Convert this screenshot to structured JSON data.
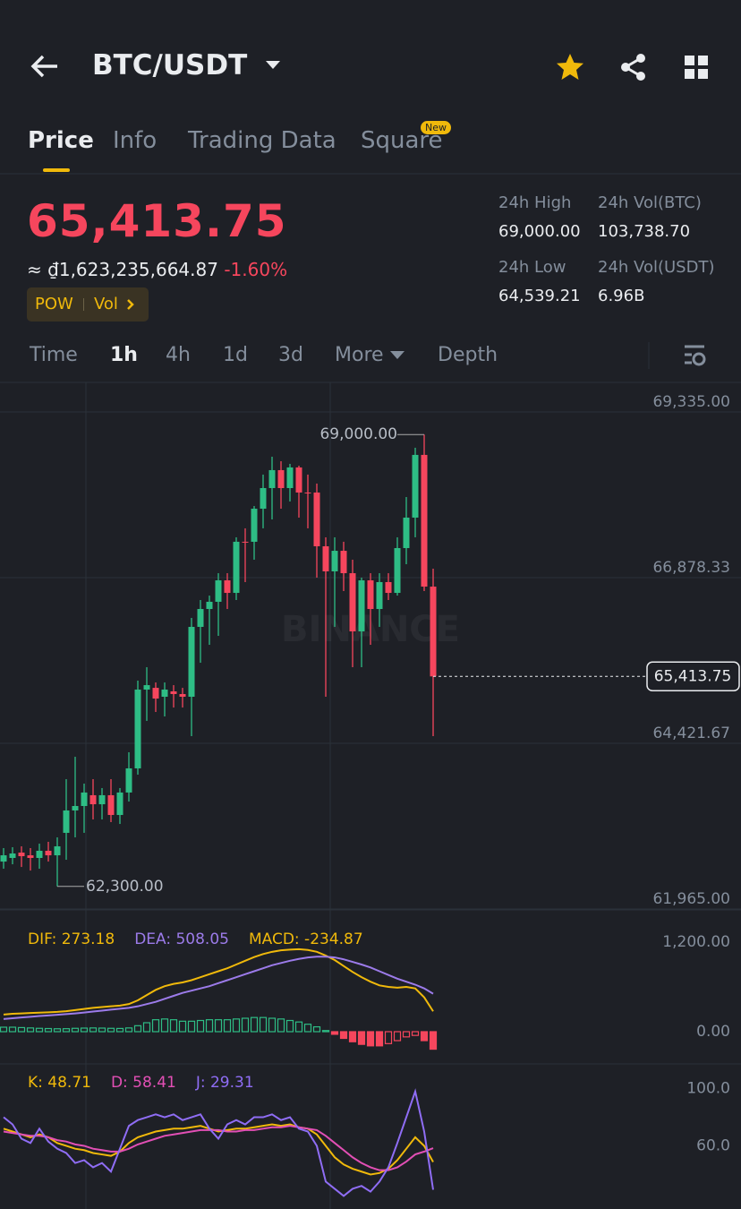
{
  "header": {
    "title": "BTC/USDT"
  },
  "tabs": [
    "Price",
    "Info",
    "Trading Data",
    "Square"
  ],
  "tab_badge": "New",
  "ticker": {
    "price": "65,413.75",
    "fiat": "≈ ₫1,623,235,664.87",
    "change": "-1.60%",
    "tags": [
      "POW",
      "Vol"
    ]
  },
  "stats": [
    {
      "label": "24h High",
      "value": "69,000.00"
    },
    {
      "label": "24h Vol(BTC)",
      "value": "103,738.70"
    },
    {
      "label": "24h Low",
      "value": "64,539.21"
    },
    {
      "label": "24h Vol(USDT)",
      "value": "6.96B"
    }
  ],
  "intervals": [
    "Time",
    "1h",
    "4h",
    "1d",
    "3d",
    "More",
    "Depth"
  ],
  "chart_data": [
    {
      "type": "candlestick",
      "watermark": "BINANCE",
      "up_color": "#2ebd85",
      "down_color": "#f6465d",
      "open": [
        62668,
        62722,
        62801,
        62761,
        62722,
        62828,
        62761,
        63094,
        63426,
        63492,
        63652,
        63518,
        63652,
        63359,
        63692,
        64050,
        65218,
        65244,
        65112,
        65192,
        65152,
        65112,
        66148,
        66413,
        66520,
        66838,
        66652,
        67410,
        67410,
        67900,
        68206,
        68472,
        68206,
        68512,
        68140,
        68140,
        67343,
        66971,
        67276,
        66944,
        66081,
        66838,
        66413,
        66812,
        66652,
        67316,
        67768,
        68698,
        66745
      ],
      "high": [
        62868,
        62881,
        62894,
        62868,
        62934,
        62961,
        63027,
        63890,
        64222,
        63824,
        63890,
        63758,
        63890,
        63758,
        64289,
        65351,
        65550,
        65324,
        65324,
        65284,
        65244,
        66280,
        66546,
        66612,
        66944,
        66944,
        67476,
        67609,
        67940,
        68406,
        68671,
        68604,
        68565,
        68538,
        68406,
        68273,
        67476,
        67476,
        67410,
        67144,
        66878,
        66944,
        66944,
        66944,
        67476,
        68073,
        68804,
        69000,
        67011
      ],
      "low": [
        62562,
        62628,
        62588,
        62535,
        62562,
        62668,
        62300,
        62695,
        63027,
        63094,
        63293,
        63293,
        63253,
        63226,
        63558,
        63957,
        64754,
        64886,
        64820,
        64952,
        64952,
        64528,
        65616,
        65882,
        66015,
        66413,
        66546,
        66812,
        67144,
        67609,
        67741,
        67900,
        68007,
        67768,
        67609,
        66878,
        65112,
        66148,
        66679,
        65550,
        65550,
        65882,
        66148,
        66546,
        66612,
        67077,
        67476,
        66679,
        64528
      ],
      "close": [
        62761,
        62788,
        62748,
        62722,
        62828,
        62761,
        62894,
        63426,
        63492,
        63692,
        63518,
        63652,
        63359,
        63692,
        64050,
        65218,
        65284,
        65085,
        65218,
        65152,
        65112,
        66148,
        66413,
        66520,
        66838,
        66652,
        67410,
        67400,
        67900,
        68206,
        68472,
        68206,
        68512,
        68140,
        68130,
        67343,
        66971,
        67276,
        66944,
        66081,
        66838,
        66413,
        66812,
        66652,
        67316,
        67768,
        68698,
        66745,
        65413.75
      ],
      "ylim": [
        61965,
        69733
      ],
      "yticks": [
        {
          "value": 69335,
          "label": "69,335.00"
        },
        {
          "value": 66878.33,
          "label": "66,878.33"
        },
        {
          "value": 64421.67,
          "label": "64,421.67"
        },
        {
          "value": 61965,
          "label": "61,965.00"
        }
      ],
      "annotations": [
        {
          "value": 69000,
          "label": "69,000.00"
        },
        {
          "value": 62300,
          "label": "62,300.00"
        }
      ],
      "last_price": {
        "value": 65413.75,
        "label": "65,413.75"
      }
    },
    {
      "type": "macd",
      "ylim": [
        -456,
        1344
      ],
      "yticks": [
        {
          "value": 1200,
          "label": "1,200.00"
        },
        {
          "value": 0,
          "label": "0.00"
        }
      ],
      "series": [
        {
          "name": "DIF: 273.18",
          "color": "#f0b90b",
          "values": [
            230,
            240,
            245,
            250,
            255,
            260,
            265,
            275,
            290,
            305,
            320,
            330,
            340,
            350,
            370,
            420,
            490,
            560,
            610,
            640,
            660,
            690,
            730,
            770,
            810,
            850,
            900,
            950,
            1000,
            1040,
            1070,
            1090,
            1100,
            1105,
            1095,
            1070,
            1020,
            960,
            880,
            800,
            730,
            670,
            620,
            600,
            590,
            600,
            580,
            460,
            273.18
          ]
        },
        {
          "name": "DEA: 508.05",
          "color": "#9c7bea",
          "values": [
            170,
            180,
            190,
            200,
            210,
            218,
            226,
            235,
            245,
            257,
            270,
            282,
            295,
            307,
            320,
            340,
            370,
            400,
            440,
            480,
            520,
            550,
            580,
            610,
            650,
            690,
            730,
            770,
            810,
            850,
            890,
            920,
            950,
            975,
            995,
            1005,
            1005,
            995,
            970,
            935,
            900,
            860,
            810,
            760,
            710,
            670,
            630,
            580,
            508.05
          ]
        },
        {
          "name": "MACD: -234.87",
          "color": "#f0b90b",
          "up_color": "#2ebd85",
          "down_color": "#f6465d",
          "values": [
            60,
            60,
            55,
            50,
            45,
            42,
            39,
            40,
            45,
            48,
            50,
            48,
            45,
            43,
            50,
            80,
            120,
            160,
            170,
            160,
            140,
            140,
            150,
            160,
            160,
            160,
            170,
            180,
            190,
            190,
            180,
            170,
            150,
            130,
            100,
            65,
            15,
            -35,
            -90,
            -135,
            -170,
            -190,
            -190,
            -160,
            -120,
            -70,
            -50,
            -120,
            -234.87
          ]
        }
      ]
    },
    {
      "type": "line",
      "ylim": [
        19,
        116
      ],
      "yticks": [
        {
          "value": 100,
          "label": "100.0"
        },
        {
          "value": 60,
          "label": "60.0"
        }
      ],
      "series": [
        {
          "name": "K: 48.71",
          "color": "#f0b90b",
          "values": [
            72,
            70,
            68,
            66,
            68,
            66,
            62,
            60,
            58,
            57,
            55,
            54,
            53,
            56,
            62,
            66,
            68,
            70,
            71,
            72,
            72,
            73,
            74,
            72,
            70,
            71,
            72,
            72,
            73,
            74,
            75,
            74,
            75,
            73,
            72,
            68,
            60,
            52,
            47,
            44,
            42,
            40,
            41,
            44,
            50,
            58,
            66,
            60,
            48.71
          ]
        },
        {
          "name": "D: 58.41",
          "color": "#e24fb5",
          "values": [
            70,
            69,
            68,
            67,
            67,
            66,
            64,
            63,
            61,
            60,
            58,
            57,
            56,
            56,
            58,
            61,
            63,
            65,
            67,
            68,
            69,
            70,
            71,
            71,
            71,
            70,
            70,
            71,
            71,
            72,
            73,
            73,
            74,
            73,
            72,
            71,
            67,
            62,
            57,
            52,
            48,
            45,
            43,
            43,
            45,
            49,
            54,
            56,
            58.41
          ]
        },
        {
          "name": "J: 29.31",
          "color": "#8f6df5",
          "values": [
            80,
            75,
            65,
            62,
            72,
            63,
            58,
            55,
            48,
            50,
            45,
            48,
            42,
            58,
            74,
            78,
            80,
            82,
            80,
            82,
            78,
            80,
            82,
            72,
            65,
            75,
            78,
            75,
            80,
            80,
            82,
            78,
            80,
            72,
            70,
            60,
            35,
            30,
            25,
            30,
            32,
            28,
            35,
            45,
            62,
            80,
            98,
            70,
            29.31
          ]
        }
      ]
    }
  ]
}
